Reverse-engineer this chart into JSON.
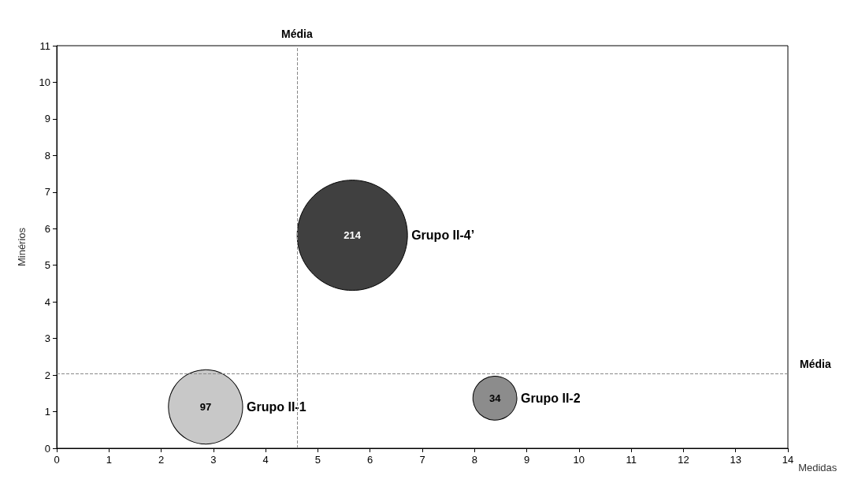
{
  "chart_data": {
    "type": "bubble",
    "xlabel": "Medidas",
    "ylabel": "Minérios",
    "xlim": [
      0,
      14
    ],
    "xticks": [
      0,
      1,
      2,
      3,
      4,
      5,
      6,
      7,
      8,
      9,
      10,
      11,
      12,
      13,
      14
    ],
    "ylim": [
      0,
      11
    ],
    "yticks": [
      0,
      1,
      2,
      3,
      4,
      5,
      6,
      7,
      8,
      9,
      10,
      11
    ],
    "grid": false,
    "legend": false,
    "series": [
      {
        "name": "Grupo II-1",
        "color": "#c8c8c8",
        "x": [
          2.85
        ],
        "values": [
          1.13
        ],
        "sizes": [
          97
        ],
        "value_labels": [
          "97"
        ]
      },
      {
        "name": "Grupo II-4’",
        "color": "#404040",
        "x": [
          5.66
        ],
        "values": [
          5.82
        ],
        "sizes": [
          214
        ],
        "value_labels": [
          "214"
        ]
      },
      {
        "name": "Grupo II-2",
        "color": "#8c8c8c",
        "x": [
          8.39
        ],
        "values": [
          1.37
        ],
        "sizes": [
          34
        ],
        "value_labels": [
          "34"
        ]
      }
    ],
    "ref_lines": [
      {
        "axis": "x",
        "value": 4.6,
        "label": "Média"
      },
      {
        "axis": "y",
        "value": 2.05,
        "label": "Média"
      }
    ]
  }
}
